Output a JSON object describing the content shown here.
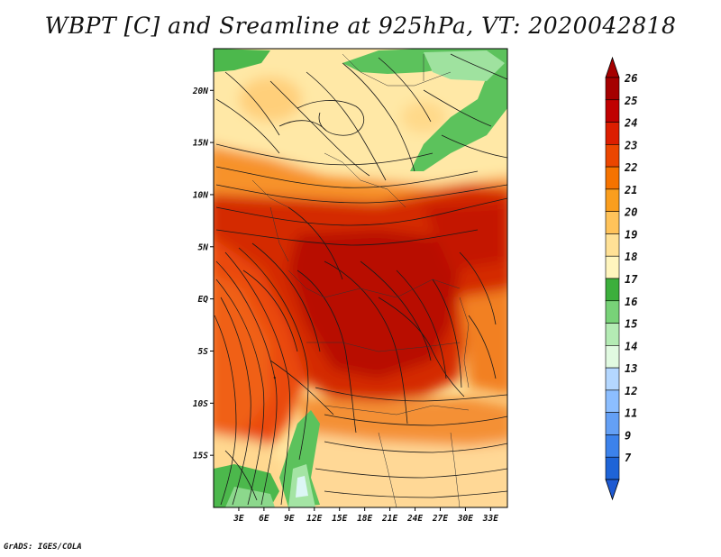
{
  "title": "WBPT [C] and Sreamline at 925hPa, VT: 2020042818",
  "credit": "GrADS: IGES/COLA",
  "map": {
    "lat_range": [
      -20,
      24
    ],
    "lon_range": [
      0,
      35
    ],
    "lat_ticks": [
      {
        "value": 20,
        "label": "20N"
      },
      {
        "value": 15,
        "label": "15N"
      },
      {
        "value": 10,
        "label": "10N"
      },
      {
        "value": 5,
        "label": "5N"
      },
      {
        "value": 0,
        "label": "EQ"
      },
      {
        "value": -5,
        "label": "5S"
      },
      {
        "value": -10,
        "label": "10S"
      },
      {
        "value": -15,
        "label": "15S"
      }
    ],
    "lon_ticks": [
      {
        "value": 3,
        "label": "3E"
      },
      {
        "value": 6,
        "label": "6E"
      },
      {
        "value": 9,
        "label": "9E"
      },
      {
        "value": 12,
        "label": "12E"
      },
      {
        "value": 15,
        "label": "15E"
      },
      {
        "value": 18,
        "label": "18E"
      },
      {
        "value": 21,
        "label": "21E"
      },
      {
        "value": 24,
        "label": "24E"
      },
      {
        "value": 27,
        "label": "27E"
      },
      {
        "value": 30,
        "label": "30E"
      },
      {
        "value": 33,
        "label": "33E"
      }
    ]
  },
  "colorbar": {
    "levels": [
      {
        "label": "26",
        "color": "#a50000"
      },
      {
        "label": "25",
        "color": "#c00000"
      },
      {
        "label": "24",
        "color": "#dc1e00"
      },
      {
        "label": "23",
        "color": "#eb4600"
      },
      {
        "label": "22",
        "color": "#f57300"
      },
      {
        "label": "21",
        "color": "#fa9e1e"
      },
      {
        "label": "20",
        "color": "#ffc35a"
      },
      {
        "label": "19",
        "color": "#ffe196"
      },
      {
        "label": "18",
        "color": "#fff5be"
      },
      {
        "label": "17",
        "color": "#3caf3c"
      },
      {
        "label": "16",
        "color": "#78d278"
      },
      {
        "label": "15",
        "color": "#b4ebb4"
      },
      {
        "label": "14",
        "color": "#e1fae1"
      },
      {
        "label": "13",
        "color": "#b4d7ff"
      },
      {
        "label": "12",
        "color": "#8cbeff"
      },
      {
        "label": "11",
        "color": "#64a0f5"
      },
      {
        "label": "9",
        "color": "#3c82eb"
      },
      {
        "label": "7",
        "color": "#1e64d7"
      }
    ],
    "top_color": "#a50000",
    "bottom_color": "#1e5ad2"
  }
}
